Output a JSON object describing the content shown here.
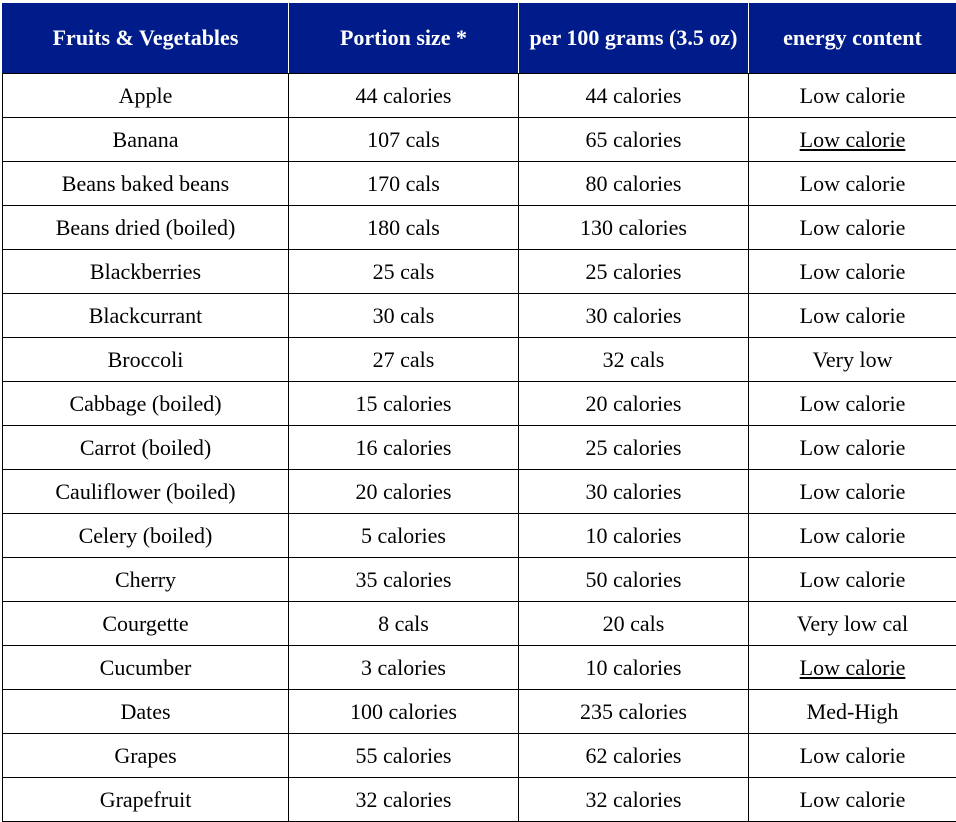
{
  "table": {
    "headers": [
      "Fruits & Vegetables",
      "Portion size *",
      "per 100 grams (3.5 oz)",
      "energy content"
    ],
    "rows": [
      {
        "name": "Apple",
        "portion": "44 calories",
        "per100": "44 calories",
        "energy": "Low calorie",
        "energy_underlined": false
      },
      {
        "name": "Banana",
        "portion": "107 cals",
        "per100": "65 calories",
        "energy": "Low calorie",
        "energy_underlined": true
      },
      {
        "name": "Beans baked beans",
        "portion": "170 cals",
        "per100": "80 calories",
        "energy": "Low calorie",
        "energy_underlined": false
      },
      {
        "name": "Beans dried (boiled)",
        "portion": "180 cals",
        "per100": "130 calories",
        "energy": "Low calorie",
        "energy_underlined": false
      },
      {
        "name": "Blackberries",
        "portion": "25 cals",
        "per100": "25 calories",
        "energy": "Low calorie",
        "energy_underlined": false
      },
      {
        "name": "Blackcurrant",
        "portion": "30 cals",
        "per100": "30 calories",
        "energy": "Low calorie",
        "energy_underlined": false
      },
      {
        "name": "Broccoli",
        "portion": "27 cals",
        "per100": "32 cals",
        "energy": "Very low",
        "energy_underlined": false
      },
      {
        "name": "Cabbage (boiled)",
        "portion": "15 calories",
        "per100": "20 calories",
        "energy": "Low calorie",
        "energy_underlined": false
      },
      {
        "name": "Carrot (boiled)",
        "portion": "16 calories",
        "per100": "25 calories",
        "energy": "Low calorie",
        "energy_underlined": false
      },
      {
        "name": "Cauliflower (boiled)",
        "portion": "20 calories",
        "per100": "30 calories",
        "energy": "Low calorie",
        "energy_underlined": false
      },
      {
        "name": "Celery (boiled)",
        "portion": "5 calories",
        "per100": "10 calories",
        "energy": "Low calorie",
        "energy_underlined": false
      },
      {
        "name": "Cherry",
        "portion": "35 calories",
        "per100": "50 calories",
        "energy": "Low calorie",
        "energy_underlined": false
      },
      {
        "name": "Courgette",
        "portion": "8 cals",
        "per100": "20 cals",
        "energy": "Very low cal",
        "energy_underlined": false
      },
      {
        "name": "Cucumber",
        "portion": "3 calories",
        "per100": "10 calories",
        "energy": "Low calorie",
        "energy_underlined": true
      },
      {
        "name": "Dates",
        "portion": "100 calories",
        "per100": "235 calories",
        "energy": "Med-High",
        "energy_underlined": false
      },
      {
        "name": "Grapes",
        "portion": "55 calories",
        "per100": "62 calories",
        "energy": "Low calorie",
        "energy_underlined": false
      },
      {
        "name": "Grapefruit",
        "portion": "32 calories",
        "per100": "32 calories",
        "energy": "Low calorie",
        "energy_underlined": false
      }
    ]
  },
  "colors": {
    "header_bg": "#001b8a",
    "header_text": "#ffffff",
    "border": "#000000"
  }
}
